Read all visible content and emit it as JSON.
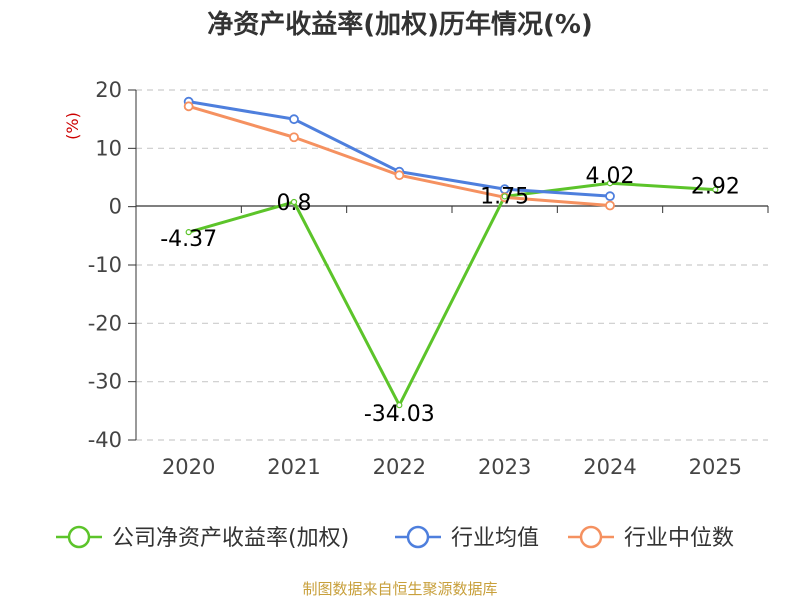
{
  "chart_data": {
    "type": "line",
    "title": "净资产收益率(加权)历年情况(%)",
    "ylabel": "(%)",
    "xlabel": "",
    "ylim": [
      -40,
      20
    ],
    "yticks": [
      20,
      10,
      0,
      -10,
      -20,
      -30,
      -40
    ],
    "categories": [
      "2020",
      "2021",
      "2022",
      "2023",
      "2024",
      "2025"
    ],
    "series": [
      {
        "name": "公司净资产收益率(加权)",
        "color": "#5cc42a",
        "values": [
          -4.37,
          0.8,
          -34.03,
          1.75,
          4.02,
          2.92
        ],
        "labels": [
          "-4.37",
          "0.8",
          "-34.03",
          "1.75",
          "4.02",
          "2.92"
        ],
        "show_labels": true,
        "markers": false
      },
      {
        "name": "行业均值",
        "color": "#4e7fdd",
        "values": [
          18.0,
          15.0,
          6.0,
          3.0,
          1.8,
          null
        ],
        "show_labels": false,
        "markers": true
      },
      {
        "name": "行业中位数",
        "color": "#f59160",
        "values": [
          17.2,
          11.9,
          5.4,
          1.6,
          0.2,
          null
        ],
        "show_labels": false,
        "markers": true
      }
    ],
    "grid": true,
    "legend_position": "bottom"
  },
  "source_text": "制图数据来自恒生聚源数据库"
}
